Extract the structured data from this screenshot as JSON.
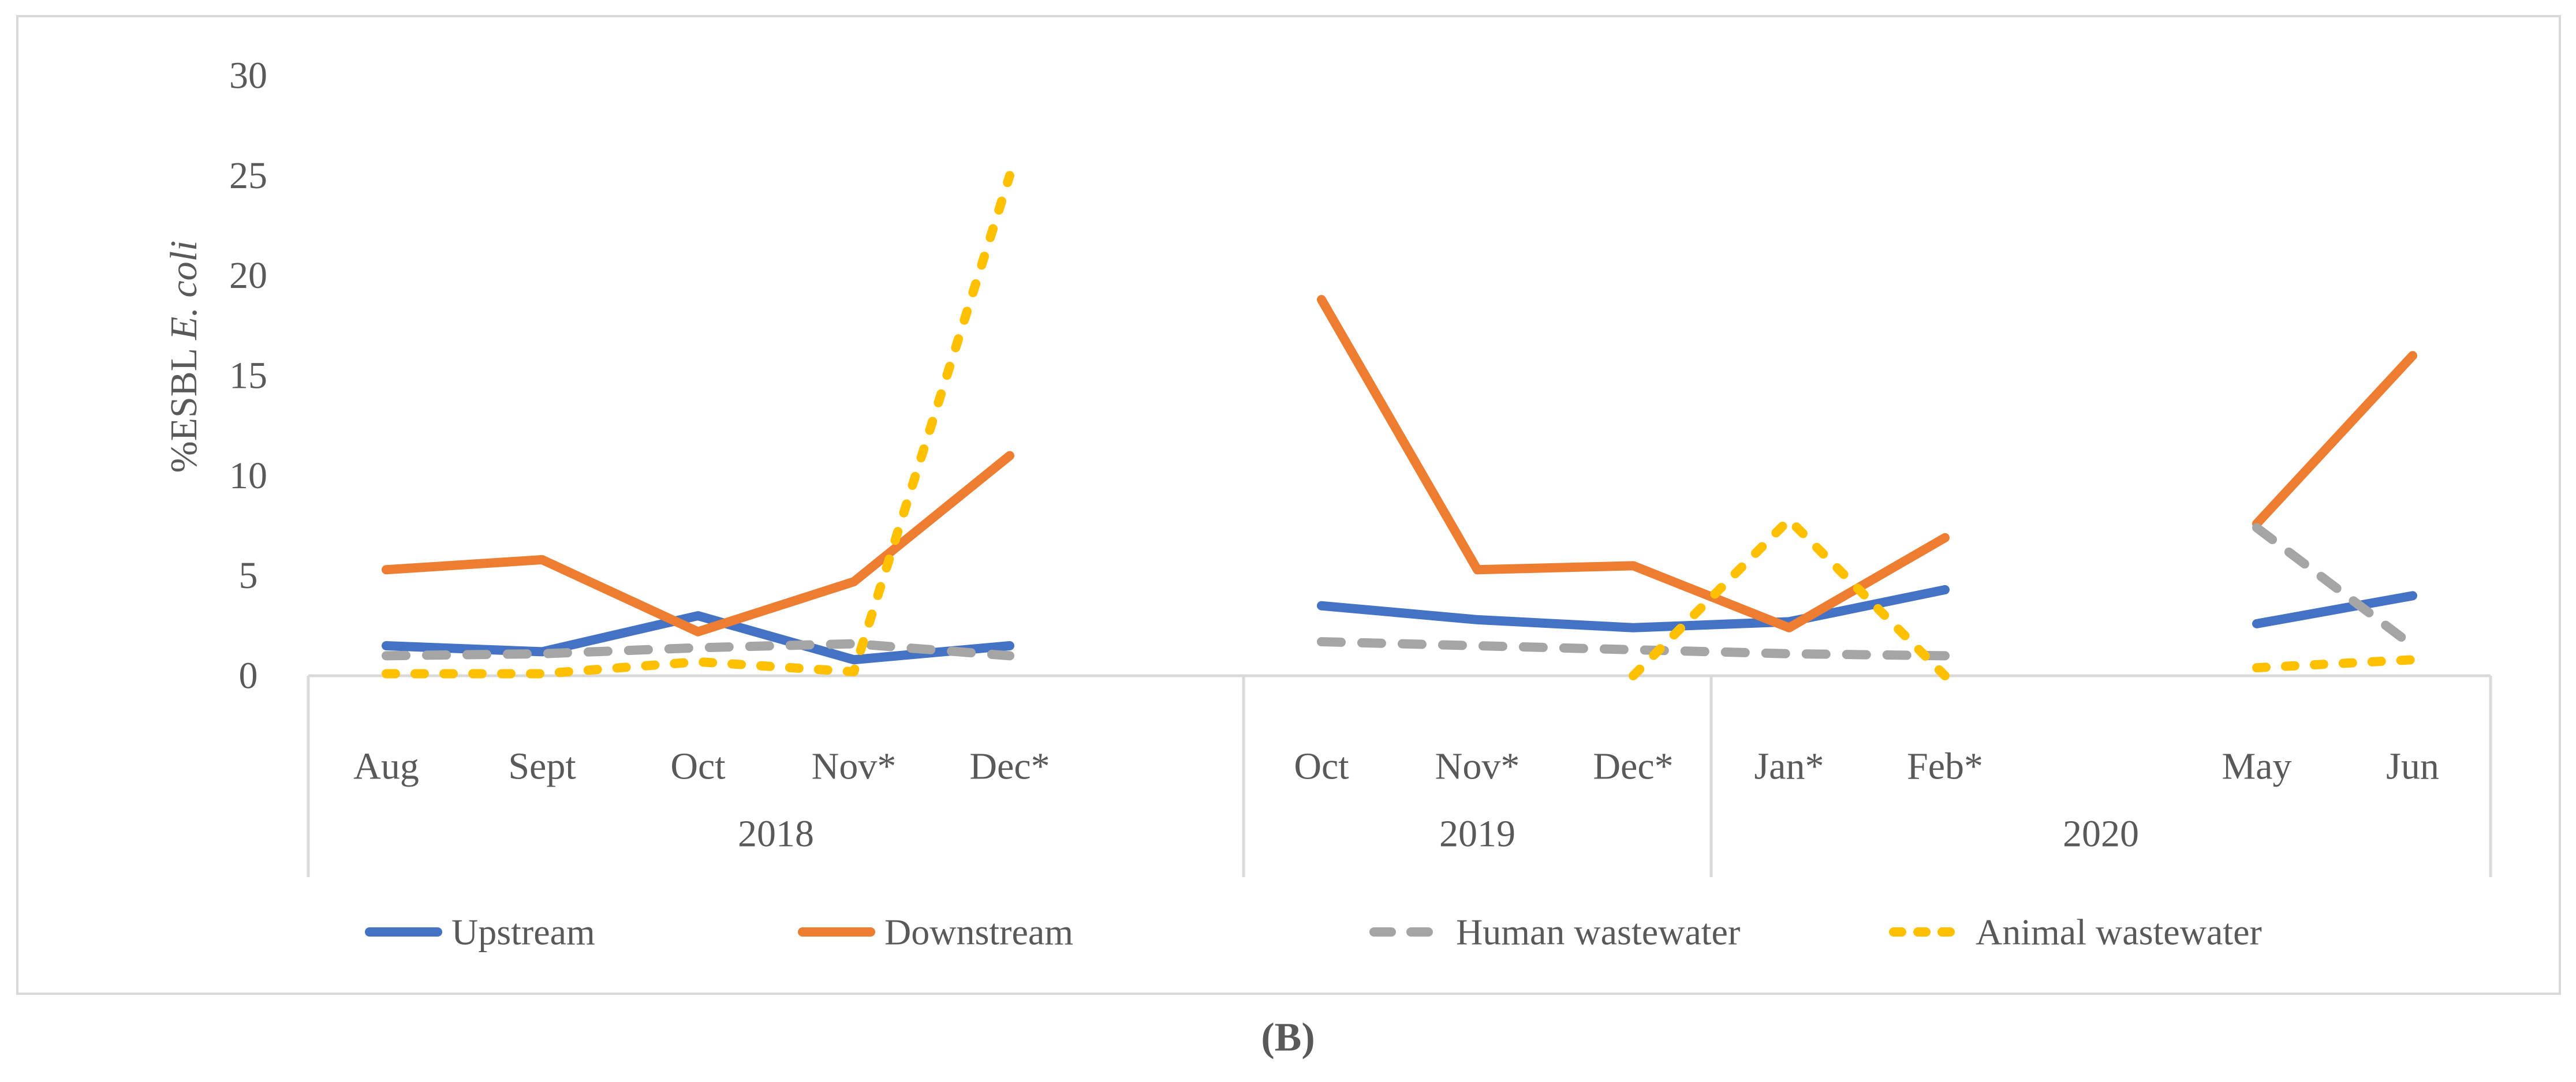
{
  "figure": {
    "caption": "(B)"
  },
  "chart_data": {
    "type": "line",
    "title": "",
    "ylabel_prefix": "%ESBL ",
    "ylabel_italic": "E. coli",
    "xlabel": "",
    "ylim": [
      0,
      30
    ],
    "yticks": [
      0,
      5,
      10,
      15,
      20,
      25,
      30
    ],
    "grid": false,
    "legend_position": "bottom",
    "axis_color": "#D9D9D9",
    "text_color": "#595959",
    "categories": [
      "Aug",
      "Sept",
      "Oct",
      "Nov*",
      "Dec*",
      "Oct",
      "Nov*",
      "Dec*",
      "Jan*",
      "Feb*",
      "May",
      "Jun"
    ],
    "category_slots": [
      0,
      1,
      2,
      3,
      4,
      6,
      7,
      8,
      9,
      10,
      12,
      13
    ],
    "year_groups": [
      {
        "label": "2018",
        "start_slot": -0.5,
        "end_slot": 5.5
      },
      {
        "label": "2019",
        "start_slot": 5.5,
        "end_slot": 8.5
      },
      {
        "label": "2020",
        "start_slot": 8.5,
        "end_slot": 13.5
      }
    ],
    "series": [
      {
        "name": "Upstream",
        "color": "#4472C4",
        "dash": "solid",
        "values": [
          1.5,
          1.2,
          3.0,
          0.8,
          1.5,
          3.5,
          2.8,
          2.4,
          2.7,
          4.3,
          2.6,
          4.0
        ]
      },
      {
        "name": "Downstream",
        "color": "#ED7D31",
        "dash": "solid",
        "values": [
          5.3,
          5.8,
          2.2,
          4.7,
          11.0,
          18.8,
          5.3,
          5.5,
          2.4,
          6.9,
          7.6,
          16.0
        ]
      },
      {
        "name": "Human wastewater",
        "color": "#A5A5A5",
        "dash": "dashed",
        "values": [
          1.0,
          1.1,
          1.4,
          1.6,
          1.0,
          1.7,
          1.5,
          1.3,
          1.1,
          1.0,
          7.4,
          1.5
        ]
      },
      {
        "name": "Animal wastewater",
        "color": "#FFC000",
        "dash": "dotted",
        "values": [
          0.1,
          0.1,
          0.7,
          0.2,
          25.0,
          null,
          null,
          0.0,
          7.8,
          0.0,
          0.4,
          0.8
        ]
      }
    ]
  }
}
